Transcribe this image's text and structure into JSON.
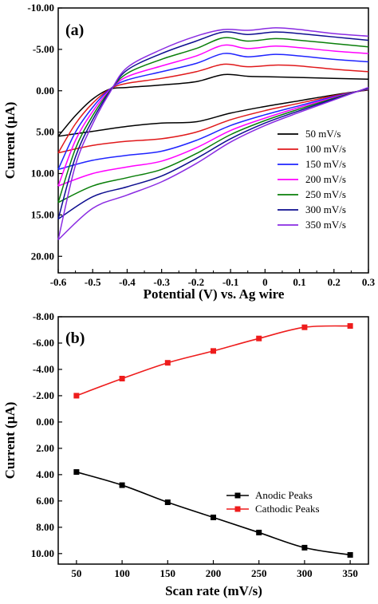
{
  "chart_data": [
    {
      "type": "line",
      "panel_label": "(a)",
      "xlabel": "Potential (V) vs. Ag wire",
      "ylabel": "Current (µA)",
      "xlim": [
        -0.6,
        0.3
      ],
      "ylim": [
        -10,
        22
      ],
      "y_inverted": true,
      "xticks": [
        -0.6,
        -0.5,
        -0.4,
        -0.3,
        -0.2,
        -0.1,
        0.0,
        0.1,
        0.2,
        0.3
      ],
      "xtick_labels": [
        "-0.6",
        "-0.5",
        "-0.4",
        "-0.3",
        "-0.2",
        "-0.1",
        "0",
        "0.1",
        "0.2",
        "0.3"
      ],
      "yticks": [
        -10,
        -5,
        0,
        5,
        10,
        15,
        20
      ],
      "ytick_labels": [
        "-10.00",
        "-5.00",
        "0.00",
        "5.00",
        "10.00",
        "15.00",
        "20.00"
      ],
      "legend_position": "right",
      "series": [
        {
          "name": "50 mV/s",
          "color": "#000000",
          "upper": [
            [
              -0.6,
              5.5
            ],
            [
              -0.55,
              3.0
            ],
            [
              -0.5,
              1.0
            ],
            [
              -0.45,
              -0.2
            ],
            [
              -0.4,
              -0.4
            ],
            [
              -0.3,
              -0.7
            ],
            [
              -0.2,
              -1.1
            ],
            [
              -0.12,
              -1.95
            ],
            [
              -0.05,
              -1.75
            ],
            [
              0.0,
              -1.7
            ],
            [
              0.1,
              -1.6
            ],
            [
              0.2,
              -1.5
            ],
            [
              0.3,
              -1.4
            ]
          ],
          "lower": [
            [
              0.3,
              -0.1
            ],
            [
              0.2,
              0.5
            ],
            [
              0.1,
              1.2
            ],
            [
              0.0,
              1.9
            ],
            [
              -0.1,
              2.7
            ],
            [
              -0.2,
              3.75
            ],
            [
              -0.3,
              3.9
            ],
            [
              -0.4,
              4.3
            ],
            [
              -0.5,
              4.9
            ],
            [
              -0.6,
              5.5
            ]
          ]
        },
        {
          "name": "100 mV/s",
          "color": "#e0191b",
          "upper": [
            [
              -0.6,
              7.5
            ],
            [
              -0.55,
              4.0
            ],
            [
              -0.5,
              1.5
            ],
            [
              -0.45,
              -0.2
            ],
            [
              -0.4,
              -0.9
            ],
            [
              -0.3,
              -1.5
            ],
            [
              -0.2,
              -2.3
            ],
            [
              -0.12,
              -3.2
            ],
            [
              -0.05,
              -2.9
            ],
            [
              0.03,
              -3.1
            ],
            [
              0.1,
              -3.0
            ],
            [
              0.2,
              -2.6
            ],
            [
              0.3,
              -2.3
            ]
          ],
          "lower": [
            [
              0.3,
              -0.15
            ],
            [
              0.2,
              0.6
            ],
            [
              0.1,
              1.5
            ],
            [
              0.0,
              2.4
            ],
            [
              -0.1,
              3.5
            ],
            [
              -0.2,
              5.0
            ],
            [
              -0.3,
              5.8
            ],
            [
              -0.4,
              6.1
            ],
            [
              -0.5,
              6.6
            ],
            [
              -0.6,
              7.5
            ]
          ]
        },
        {
          "name": "150 mV/s",
          "color": "#1f24ff",
          "upper": [
            [
              -0.6,
              9.5
            ],
            [
              -0.55,
              5.0
            ],
            [
              -0.5,
              2.0
            ],
            [
              -0.45,
              -0.2
            ],
            [
              -0.4,
              -1.3
            ],
            [
              -0.3,
              -2.3
            ],
            [
              -0.2,
              -3.3
            ],
            [
              -0.12,
              -4.5
            ],
            [
              -0.05,
              -4.1
            ],
            [
              0.03,
              -4.4
            ],
            [
              0.1,
              -4.2
            ],
            [
              0.2,
              -3.8
            ],
            [
              0.3,
              -3.5
            ]
          ],
          "lower": [
            [
              0.3,
              -0.2
            ],
            [
              0.2,
              0.7
            ],
            [
              0.1,
              1.8
            ],
            [
              0.0,
              2.9
            ],
            [
              -0.1,
              4.2
            ],
            [
              -0.2,
              6.0
            ],
            [
              -0.3,
              7.3
            ],
            [
              -0.4,
              7.8
            ],
            [
              -0.5,
              8.4
            ],
            [
              -0.6,
              9.5
            ]
          ]
        },
        {
          "name": "200 mV/s",
          "color": "#ff00ff",
          "upper": [
            [
              -0.6,
              11.5
            ],
            [
              -0.55,
              6.0
            ],
            [
              -0.5,
              2.5
            ],
            [
              -0.45,
              -0.1
            ],
            [
              -0.4,
              -1.7
            ],
            [
              -0.3,
              -3.0
            ],
            [
              -0.2,
              -4.2
            ],
            [
              -0.12,
              -5.5
            ],
            [
              -0.05,
              -5.1
            ],
            [
              0.03,
              -5.4
            ],
            [
              0.1,
              -5.2
            ],
            [
              0.2,
              -4.8
            ],
            [
              0.3,
              -4.5
            ]
          ],
          "lower": [
            [
              0.3,
              -0.25
            ],
            [
              0.2,
              0.8
            ],
            [
              0.1,
              2.0
            ],
            [
              0.0,
              3.3
            ],
            [
              -0.1,
              4.8
            ],
            [
              -0.2,
              6.9
            ],
            [
              -0.3,
              8.5
            ],
            [
              -0.4,
              9.2
            ],
            [
              -0.5,
              10.0
            ],
            [
              -0.6,
              11.5
            ]
          ]
        },
        {
          "name": "250 mV/s",
          "color": "#0a7f0a",
          "upper": [
            [
              -0.6,
              13.5
            ],
            [
              -0.55,
              7.0
            ],
            [
              -0.5,
              3.0
            ],
            [
              -0.45,
              0.0
            ],
            [
              -0.4,
              -2.1
            ],
            [
              -0.3,
              -3.8
            ],
            [
              -0.2,
              -5.1
            ],
            [
              -0.12,
              -6.4
            ],
            [
              -0.05,
              -6.0
            ],
            [
              0.03,
              -6.3
            ],
            [
              0.1,
              -6.1
            ],
            [
              0.2,
              -5.7
            ],
            [
              0.3,
              -5.3
            ]
          ],
          "lower": [
            [
              0.3,
              -0.3
            ],
            [
              0.2,
              0.9
            ],
            [
              0.1,
              2.2
            ],
            [
              0.0,
              3.6
            ],
            [
              -0.1,
              5.3
            ],
            [
              -0.2,
              7.6
            ],
            [
              -0.3,
              9.5
            ],
            [
              -0.4,
              10.5
            ],
            [
              -0.5,
              11.5
            ],
            [
              -0.6,
              13.5
            ]
          ]
        },
        {
          "name": "300 mV/s",
          "color": "#0d0d8f",
          "upper": [
            [
              -0.6,
              15.5
            ],
            [
              -0.55,
              8.0
            ],
            [
              -0.5,
              3.5
            ],
            [
              -0.45,
              0.1
            ],
            [
              -0.4,
              -2.5
            ],
            [
              -0.3,
              -4.5
            ],
            [
              -0.2,
              -6.0
            ],
            [
              -0.12,
              -7.1
            ],
            [
              -0.05,
              -6.8
            ],
            [
              0.03,
              -7.1
            ],
            [
              0.1,
              -6.9
            ],
            [
              0.2,
              -6.5
            ],
            [
              0.3,
              -6.1
            ]
          ],
          "lower": [
            [
              0.3,
              -0.35
            ],
            [
              0.2,
              1.0
            ],
            [
              0.1,
              2.4
            ],
            [
              0.0,
              3.9
            ],
            [
              -0.1,
              5.8
            ],
            [
              -0.2,
              8.2
            ],
            [
              -0.3,
              10.3
            ],
            [
              -0.4,
              11.6
            ],
            [
              -0.5,
              12.8
            ],
            [
              -0.6,
              15.5
            ]
          ]
        },
        {
          "name": "350 mV/s",
          "color": "#8a2be2",
          "upper": [
            [
              -0.6,
              18.0
            ],
            [
              -0.55,
              9.0
            ],
            [
              -0.5,
              4.0
            ],
            [
              -0.45,
              0.2
            ],
            [
              -0.4,
              -2.8
            ],
            [
              -0.3,
              -5.0
            ],
            [
              -0.2,
              -6.6
            ],
            [
              -0.12,
              -7.4
            ],
            [
              -0.05,
              -7.3
            ],
            [
              0.03,
              -7.6
            ],
            [
              0.1,
              -7.4
            ],
            [
              0.2,
              -6.9
            ],
            [
              0.3,
              -6.6
            ]
          ],
          "lower": [
            [
              0.3,
              -0.4
            ],
            [
              0.2,
              1.1
            ],
            [
              0.1,
              2.6
            ],
            [
              0.0,
              4.2
            ],
            [
              -0.1,
              6.2
            ],
            [
              -0.2,
              8.8
            ],
            [
              -0.3,
              11.0
            ],
            [
              -0.4,
              12.6
            ],
            [
              -0.5,
              14.2
            ],
            [
              -0.6,
              18.0
            ]
          ]
        }
      ]
    },
    {
      "type": "line",
      "panel_label": "(b)",
      "xlabel": "Scan rate (mV/s)",
      "ylabel": "Current (µA)",
      "xlim": [
        30,
        370
      ],
      "ylim": [
        -8,
        10.8
      ],
      "y_inverted": true,
      "xticks": [
        50,
        100,
        150,
        200,
        250,
        300,
        350
      ],
      "xtick_labels": [
        "50",
        "100",
        "150",
        "200",
        "250",
        "300",
        "350"
      ],
      "yticks": [
        -8,
        -6,
        -4,
        -2,
        0,
        2,
        4,
        6,
        8,
        10
      ],
      "ytick_labels": [
        "-8.00",
        "-6.00",
        "-4.00",
        "-2.00",
        "0.00",
        "2.00",
        "4.00",
        "6.00",
        "8.00",
        "10.00"
      ],
      "legend_position": "bottom-right",
      "x": [
        50,
        100,
        150,
        200,
        250,
        300,
        350
      ],
      "series": [
        {
          "name": "Anodic Peaks",
          "color": "#000000",
          "values": [
            3.8,
            4.8,
            6.1,
            7.25,
            8.4,
            9.55,
            10.1
          ]
        },
        {
          "name": "Cathodic Peaks",
          "color": "#ee1c1c",
          "values": [
            -2.0,
            -3.3,
            -4.5,
            -5.4,
            -6.35,
            -7.2,
            -7.3
          ]
        }
      ]
    }
  ]
}
